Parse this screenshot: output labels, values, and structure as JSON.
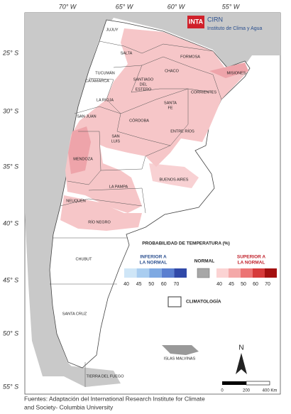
{
  "map": {
    "lon_labels": [
      "70° W",
      "65° W",
      "60° W",
      "55° W"
    ],
    "lat_labels": [
      "25° S",
      "30° S",
      "35° S",
      "40° S",
      "45° S",
      "50° S",
      "55° S"
    ],
    "provinces": [
      [
        "JUJUY"
      ],
      [
        "SALTA"
      ],
      [
        "FORMOSA"
      ],
      [
        "MISIONES"
      ],
      [
        "TUCUMÁN"
      ],
      [
        "CATAMARCA"
      ],
      [
        "SANTIAGO",
        "DEL",
        "ESTERO"
      ],
      [
        "CHACO"
      ],
      [
        "CORRIENTES"
      ],
      [
        "LA RIOJA"
      ],
      [
        "SANTA",
        "FE"
      ],
      [
        "SAN JUAN"
      ],
      [
        "CÓRDOBA"
      ],
      [
        "ENTRE RÍOS"
      ],
      [
        "SAN",
        "LUIS"
      ],
      [
        "MENDOZA"
      ],
      [
        "BUENOS AIRES"
      ],
      [
        "LA PAMPA"
      ],
      [
        "NEUQUÉN"
      ],
      [
        "RÍO NEGRO"
      ],
      [
        "CHUBUT"
      ],
      [
        "SANTA CRUZ"
      ],
      [
        "TIERRA DEL FUEGO"
      ],
      [
        "ISLAS MALVINAS"
      ]
    ],
    "logo": {
      "inta": "INTA",
      "cirn": "CIRN",
      "institute": "Instituto de Clima y Agua"
    },
    "legend": {
      "title": "PROBABILIDAD DE TEMPERATURA (%)",
      "below": [
        "INFERIOR A",
        "LA NORMAL"
      ],
      "normal": "NORMAL",
      "above": [
        "SUPERIOR A",
        "LA NORMAL"
      ],
      "below_ticks": [
        40,
        45,
        50,
        60,
        70
      ],
      "above_ticks": [
        40,
        45,
        50,
        60,
        70
      ],
      "climatology": "CLIMATOLOGÍA"
    },
    "north": "N",
    "scale": [
      "0",
      "200",
      "400 Km"
    ],
    "footer": [
      "Fuentes: Adaptación del International Research Institute for Climate",
      "and Society- Columbia University"
    ]
  }
}
